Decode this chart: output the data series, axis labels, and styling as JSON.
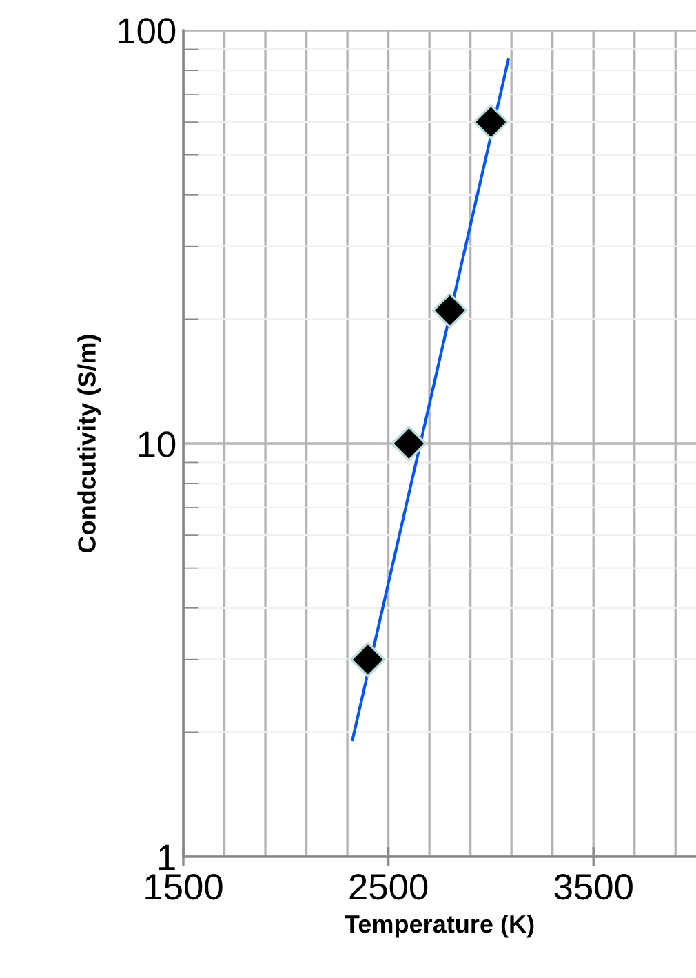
{
  "chart_data": {
    "type": "scatter",
    "xlabel": "Temperature (K)",
    "ylabel": "Condcutivity (S/m)",
    "log": "y",
    "grid": true,
    "marker": "diamond",
    "xlim": [
      1500,
      4000
    ],
    "xticks": [
      1500,
      2500,
      3500
    ],
    "ylim": [
      1,
      100
    ],
    "yticks": [
      1,
      10,
      100
    ],
    "series": [
      {
        "color": "#000000",
        "x": [
          2400,
          2600,
          2800,
          3000
        ],
        "values": [
          3.0,
          10,
          21,
          60
        ]
      },
      {
        "type": "line",
        "color": "#0055ff",
        "x": [
          2325,
          3085
        ],
        "values": [
          1.92,
          85
        ],
        "marker": "none",
        "line_style": "solid"
      }
    ]
  }
}
